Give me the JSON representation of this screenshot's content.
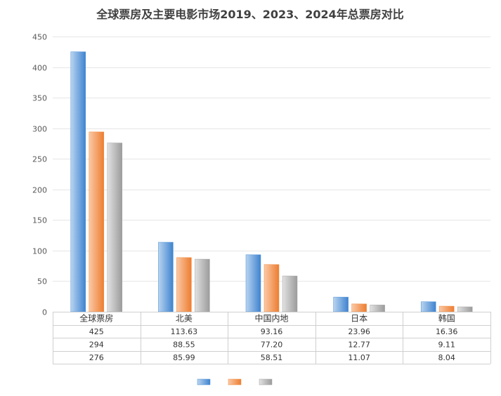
{
  "chart_data": {
    "type": "bar",
    "title": "全球票房及主要电影市场2019、2023、2024年总票房对比",
    "categories": [
      "全球票房",
      "北美",
      "中国内地",
      "日本",
      "韩国"
    ],
    "series": [
      {
        "values": [
          425,
          113.63,
          93.16,
          23.96,
          16.36
        ]
      },
      {
        "values": [
          294,
          88.55,
          77.2,
          12.77,
          9.11
        ]
      },
      {
        "values": [
          276,
          85.99,
          58.51,
          11.07,
          8.04
        ]
      }
    ],
    "table_rows": [
      [
        "425",
        "113.63",
        "93.16",
        "23.96",
        "16.36"
      ],
      [
        "294",
        "88.55",
        "77.20",
        "12.77",
        "9.11"
      ],
      [
        "276",
        "85.99",
        "58.51",
        "11.07",
        "8.04"
      ]
    ],
    "ylim": [
      0,
      450
    ],
    "yticks": [
      "0",
      "50",
      "100",
      "150",
      "200",
      "250",
      "300",
      "350",
      "400",
      "450"
    ],
    "grid": true,
    "legend_position": "bottom",
    "colors": [
      "#4a8fd6",
      "#f08a3c",
      "#a5a5a5"
    ]
  }
}
